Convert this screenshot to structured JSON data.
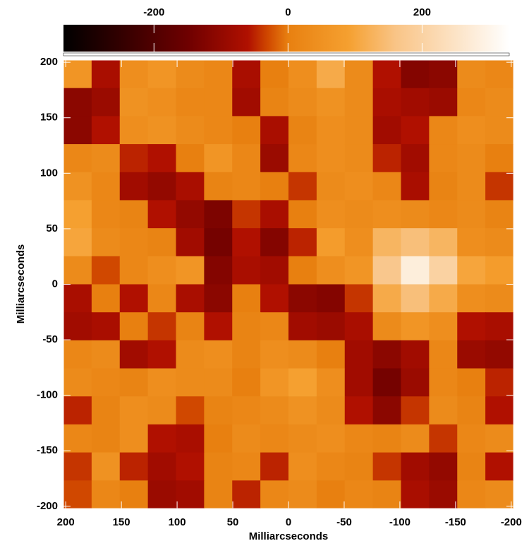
{
  "chart_data": {
    "type": "heatmap",
    "xlabel": "Milliarcseconds",
    "ylabel": "Milliarcseconds",
    "xlim": [
      202,
      -202
    ],
    "ylim": [
      -202,
      202
    ],
    "xticks": [
      200,
      150,
      100,
      50,
      0,
      -50,
      -100,
      -150,
      -200
    ],
    "yticks": [
      -200,
      -150,
      -100,
      -50,
      0,
      50,
      100,
      150,
      200
    ],
    "clim": [
      -335,
      330
    ],
    "cticks": [
      -200,
      0,
      200
    ],
    "colorscale": [
      {
        "value": -335,
        "color": "#000000"
      },
      {
        "value": -150,
        "color": "#6e0000"
      },
      {
        "value": -60,
        "color": "#b01000"
      },
      {
        "value": -30,
        "color": "#d04800"
      },
      {
        "value": 0,
        "color": "#e88010"
      },
      {
        "value": 90,
        "color": "#f5a030"
      },
      {
        "value": 160,
        "color": "#f9c486"
      },
      {
        "value": 330,
        "color": "#ffffff"
      }
    ],
    "z": [
      [
        60,
        -70,
        40,
        60,
        30,
        20,
        -70,
        0,
        40,
        110,
        30,
        -60,
        -120,
        -110,
        30,
        20
      ],
      [
        -110,
        -90,
        50,
        40,
        20,
        20,
        -80,
        10,
        30,
        50,
        30,
        -70,
        -80,
        -90,
        20,
        30
      ],
      [
        -110,
        -60,
        40,
        50,
        30,
        20,
        0,
        -70,
        10,
        40,
        30,
        -80,
        -60,
        20,
        40,
        30
      ],
      [
        20,
        30,
        -50,
        -60,
        0,
        60,
        20,
        -90,
        20,
        40,
        30,
        -50,
        -80,
        20,
        30,
        0
      ],
      [
        50,
        20,
        -80,
        -100,
        -70,
        10,
        20,
        0,
        -40,
        30,
        40,
        20,
        -70,
        10,
        30,
        -40
      ],
      [
        90,
        20,
        10,
        -60,
        -100,
        -130,
        -40,
        -70,
        0,
        40,
        30,
        40,
        30,
        20,
        30,
        10
      ],
      [
        100,
        30,
        20,
        10,
        -80,
        -140,
        -60,
        -120,
        -50,
        80,
        40,
        130,
        150,
        130,
        40,
        30
      ],
      [
        30,
        -30,
        20,
        40,
        60,
        -120,
        -70,
        -80,
        0,
        40,
        60,
        170,
        280,
        200,
        100,
        80
      ],
      [
        -70,
        0,
        -60,
        20,
        -70,
        -110,
        0,
        -60,
        -110,
        -120,
        -40,
        110,
        150,
        110,
        40,
        30
      ],
      [
        -80,
        -70,
        0,
        -40,
        10,
        -60,
        10,
        20,
        -80,
        -90,
        -70,
        30,
        60,
        40,
        -60,
        -70
      ],
      [
        20,
        30,
        -80,
        -60,
        30,
        40,
        10,
        40,
        30,
        0,
        -80,
        -110,
        -80,
        20,
        -90,
        -100
      ],
      [
        30,
        20,
        10,
        40,
        30,
        30,
        0,
        60,
        90,
        40,
        -80,
        -140,
        -90,
        20,
        0,
        -50
      ],
      [
        -50,
        10,
        40,
        30,
        -30,
        10,
        20,
        30,
        50,
        30,
        -60,
        -110,
        -40,
        30,
        10,
        -60
      ],
      [
        20,
        10,
        40,
        -60,
        -70,
        0,
        30,
        20,
        30,
        40,
        20,
        10,
        30,
        -40,
        20,
        30
      ],
      [
        -40,
        50,
        -50,
        -80,
        -60,
        10,
        20,
        -50,
        40,
        20,
        10,
        -40,
        -80,
        -100,
        10,
        -60
      ],
      [
        -30,
        20,
        0,
        -90,
        -80,
        10,
        -50,
        20,
        30,
        0,
        20,
        10,
        -70,
        -90,
        20,
        30
      ]
    ]
  }
}
